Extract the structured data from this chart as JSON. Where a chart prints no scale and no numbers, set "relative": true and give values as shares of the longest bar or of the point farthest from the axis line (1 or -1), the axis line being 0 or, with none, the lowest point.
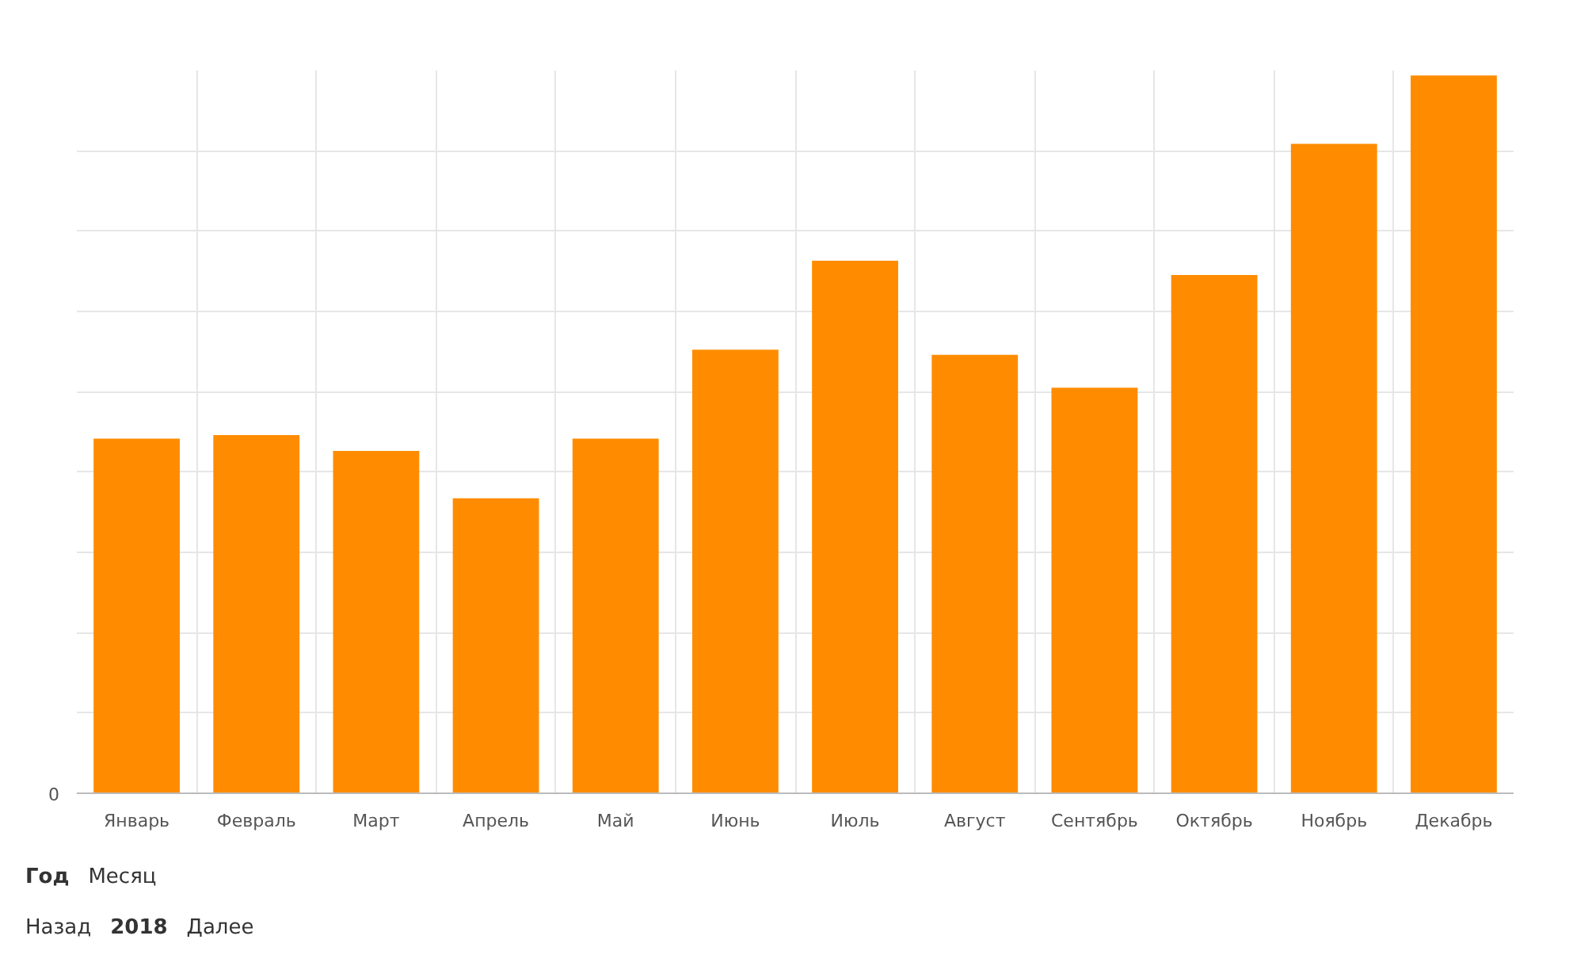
{
  "chart_data": {
    "type": "bar",
    "relative": true,
    "categories": [
      "Январь",
      "Февраль",
      "Март",
      "Апрель",
      "Май",
      "Июнь",
      "Июль",
      "Август",
      "Сентябрь",
      "Октябрь",
      "Ноябрь",
      "Декабрь"
    ],
    "values": [
      0.494,
      0.499,
      0.477,
      0.411,
      0.494,
      0.618,
      0.742,
      0.611,
      0.565,
      0.722,
      0.905,
      1
    ],
    "color": "#ff8c00",
    "grid": true,
    "annotations": [
      "0",
      "Год",
      "Месяц",
      "Назад",
      "2018",
      "Далее"
    ]
  }
}
